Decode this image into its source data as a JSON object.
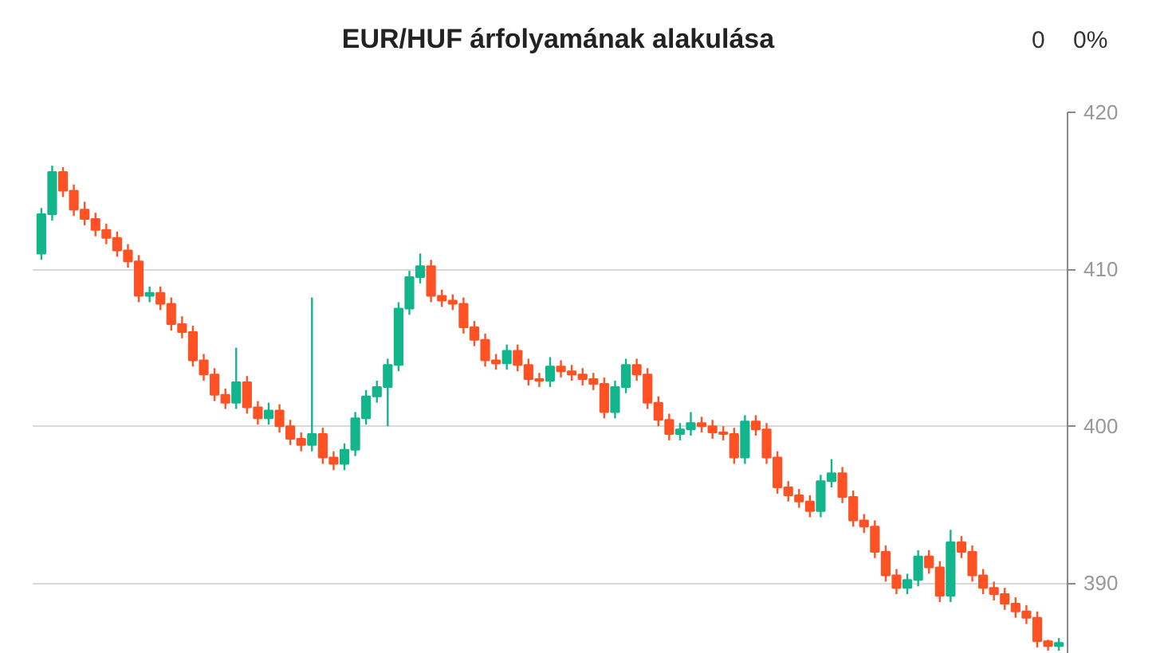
{
  "chart_data": {
    "type": "candlestick",
    "title": "EUR/HUF árfolyamának alakulása",
    "annotations": [
      "0",
      "0%"
    ],
    "categories": [
      null,
      null,
      null,
      null,
      null,
      null,
      null,
      null,
      null,
      null,
      null,
      null,
      null,
      null,
      null,
      null,
      null,
      null,
      null,
      null,
      null,
      null,
      null,
      null,
      null,
      null,
      null,
      null,
      null,
      null,
      null,
      null,
      null,
      null,
      null,
      null,
      null,
      null,
      null,
      null,
      null,
      null,
      null,
      null,
      null,
      null,
      null,
      null,
      null,
      null,
      null,
      null,
      null,
      null,
      null,
      null,
      null,
      null,
      null,
      null,
      null,
      null,
      null,
      null,
      null,
      null,
      null,
      null,
      null,
      null,
      null,
      null,
      null,
      null,
      null,
      null,
      null,
      null,
      null,
      null,
      null,
      null,
      null,
      null,
      null,
      null,
      null,
      null,
      null,
      null,
      null,
      null,
      null,
      null,
      null
    ],
    "ohlc": [
      [
        411.0,
        413.9,
        410.6,
        413.5
      ],
      [
        413.5,
        416.6,
        413.1,
        416.2
      ],
      [
        416.2,
        416.5,
        414.6,
        415.0
      ],
      [
        415.0,
        415.4,
        413.4,
        413.8
      ],
      [
        413.8,
        414.3,
        412.8,
        413.2
      ],
      [
        413.2,
        413.6,
        412.1,
        412.5
      ],
      [
        412.5,
        412.9,
        411.6,
        412.0
      ],
      [
        412.0,
        412.4,
        410.8,
        411.2
      ],
      [
        411.2,
        411.6,
        410.1,
        410.5
      ],
      [
        410.5,
        410.9,
        407.9,
        408.3
      ],
      [
        408.3,
        408.9,
        407.9,
        408.5
      ],
      [
        408.5,
        408.9,
        407.4,
        407.8
      ],
      [
        407.8,
        408.2,
        406.1,
        406.5
      ],
      [
        406.5,
        407.0,
        405.6,
        406.0
      ],
      [
        406.0,
        406.4,
        403.8,
        404.2
      ],
      [
        404.2,
        404.6,
        402.9,
        403.3
      ],
      [
        403.3,
        403.7,
        401.6,
        402.0
      ],
      [
        402.0,
        402.4,
        401.1,
        401.5
      ],
      [
        401.5,
        405.0,
        401.1,
        402.8
      ],
      [
        402.8,
        403.2,
        400.8,
        401.2
      ],
      [
        401.2,
        401.6,
        400.1,
        400.5
      ],
      [
        400.5,
        401.5,
        400.1,
        401.0
      ],
      [
        401.0,
        401.4,
        399.6,
        400.0
      ],
      [
        400.0,
        400.4,
        398.8,
        399.2
      ],
      [
        399.2,
        399.6,
        398.4,
        398.8
      ],
      [
        398.8,
        408.2,
        398.4,
        399.5
      ],
      [
        399.5,
        399.9,
        397.6,
        398.0
      ],
      [
        398.0,
        398.4,
        397.2,
        397.6
      ],
      [
        397.6,
        398.9,
        397.2,
        398.5
      ],
      [
        398.5,
        400.9,
        398.1,
        400.5
      ],
      [
        400.5,
        402.3,
        400.1,
        401.9
      ],
      [
        401.9,
        402.9,
        401.5,
        402.5
      ],
      [
        402.5,
        404.3,
        400.0,
        403.9
      ],
      [
        403.9,
        407.9,
        403.5,
        407.5
      ],
      [
        407.5,
        409.9,
        407.1,
        409.5
      ],
      [
        409.5,
        411.0,
        409.1,
        410.2
      ],
      [
        410.2,
        410.6,
        407.9,
        408.3
      ],
      [
        408.3,
        408.7,
        407.6,
        408.0
      ],
      [
        408.0,
        408.4,
        407.4,
        407.8
      ],
      [
        407.8,
        408.2,
        405.9,
        406.3
      ],
      [
        406.3,
        406.7,
        405.1,
        405.5
      ],
      [
        405.5,
        405.9,
        403.8,
        404.2
      ],
      [
        404.2,
        404.6,
        403.6,
        404.0
      ],
      [
        404.0,
        405.2,
        403.6,
        404.8
      ],
      [
        404.8,
        405.2,
        403.5,
        403.9
      ],
      [
        403.9,
        404.3,
        402.6,
        403.0
      ],
      [
        403.0,
        403.4,
        402.5,
        402.9
      ],
      [
        402.9,
        404.4,
        402.5,
        403.8
      ],
      [
        403.8,
        404.2,
        403.1,
        403.5
      ],
      [
        403.5,
        403.9,
        402.9,
        403.3
      ],
      [
        403.3,
        403.7,
        402.6,
        403.0
      ],
      [
        403.0,
        403.4,
        402.3,
        402.7
      ],
      [
        402.7,
        403.1,
        400.5,
        400.9
      ],
      [
        400.9,
        402.9,
        400.5,
        402.5
      ],
      [
        402.5,
        404.3,
        402.1,
        403.9
      ],
      [
        403.9,
        404.3,
        402.9,
        403.3
      ],
      [
        403.3,
        403.7,
        401.1,
        401.5
      ],
      [
        401.5,
        401.9,
        400.0,
        400.4
      ],
      [
        400.4,
        400.8,
        399.1,
        399.5
      ],
      [
        399.5,
        400.2,
        399.1,
        399.8
      ],
      [
        399.8,
        400.9,
        399.4,
        400.2
      ],
      [
        400.2,
        400.6,
        399.6,
        400.0
      ],
      [
        400.0,
        400.4,
        399.2,
        399.6
      ],
      [
        399.6,
        400.0,
        399.1,
        399.5
      ],
      [
        399.5,
        399.9,
        397.6,
        398.0
      ],
      [
        398.0,
        400.7,
        397.6,
        400.3
      ],
      [
        400.3,
        400.7,
        399.4,
        399.8
      ],
      [
        399.8,
        400.2,
        397.6,
        398.0
      ],
      [
        398.0,
        398.4,
        395.7,
        396.1
      ],
      [
        396.1,
        396.5,
        395.2,
        395.6
      ],
      [
        395.6,
        396.0,
        394.8,
        395.2
      ],
      [
        395.2,
        395.6,
        394.2,
        394.6
      ],
      [
        394.6,
        396.9,
        394.2,
        396.5
      ],
      [
        396.5,
        397.9,
        396.1,
        397.0
      ],
      [
        397.0,
        397.4,
        395.1,
        395.5
      ],
      [
        395.5,
        395.9,
        393.6,
        394.0
      ],
      [
        394.0,
        394.4,
        393.2,
        393.6
      ],
      [
        393.6,
        394.0,
        391.6,
        392.0
      ],
      [
        392.0,
        392.4,
        390.1,
        390.5
      ],
      [
        390.5,
        390.9,
        389.3,
        389.7
      ],
      [
        389.7,
        390.6,
        389.3,
        390.2
      ],
      [
        390.2,
        392.1,
        389.8,
        391.7
      ],
      [
        391.7,
        392.1,
        390.6,
        391.0
      ],
      [
        391.0,
        391.4,
        388.8,
        389.2
      ],
      [
        389.2,
        393.4,
        388.8,
        392.6
      ],
      [
        392.6,
        393.0,
        391.6,
        392.0
      ],
      [
        392.0,
        392.4,
        390.1,
        390.5
      ],
      [
        390.5,
        390.9,
        389.3,
        389.7
      ],
      [
        389.7,
        390.1,
        388.9,
        389.3
      ],
      [
        389.3,
        389.7,
        388.3,
        388.7
      ],
      [
        388.7,
        389.1,
        387.8,
        388.2
      ],
      [
        388.2,
        388.6,
        387.4,
        387.8
      ],
      [
        387.8,
        388.2,
        385.9,
        386.3
      ],
      [
        386.3,
        386.4,
        385.7,
        386.0
      ],
      [
        386.0,
        386.5,
        385.7,
        386.2
      ]
    ],
    "colors": [
      "#13b58c",
      "#13b58c",
      "#ff5224",
      "#ff5224",
      "#ff5224",
      "#ff5224",
      "#ff5224",
      "#ff5224",
      "#ff5224",
      "#ff5224",
      "#13b58c",
      "#ff5224",
      "#ff5224",
      "#ff5224",
      "#ff5224",
      "#ff5224",
      "#ff5224",
      "#ff5224",
      "#13b58c",
      "#ff5224",
      "#ff5224",
      "#13b58c",
      "#ff5224",
      "#ff5224",
      "#ff5224",
      "#13b58c",
      "#ff5224",
      "#ff5224",
      "#13b58c",
      "#13b58c",
      "#13b58c",
      "#13b58c",
      "#13b58c",
      "#13b58c",
      "#13b58c",
      "#13b58c",
      "#ff5224",
      "#ff5224",
      "#ff5224",
      "#ff5224",
      "#ff5224",
      "#ff5224",
      "#ff5224",
      "#13b58c",
      "#ff5224",
      "#ff5224",
      "#ff5224",
      "#13b58c",
      "#ff5224",
      "#ff5224",
      "#ff5224",
      "#ff5224",
      "#ff5224",
      "#13b58c",
      "#13b58c",
      "#ff5224",
      "#ff5224",
      "#ff5224",
      "#ff5224",
      "#13b58c",
      "#13b58c",
      "#ff5224",
      "#ff5224",
      "#ff5224",
      "#ff5224",
      "#13b58c",
      "#ff5224",
      "#ff5224",
      "#ff5224",
      "#ff5224",
      "#ff5224",
      "#ff5224",
      "#13b58c",
      "#13b58c",
      "#ff5224",
      "#ff5224",
      "#ff5224",
      "#ff5224",
      "#ff5224",
      "#ff5224",
      "#13b58c",
      "#13b58c",
      "#ff5224",
      "#ff5224",
      "#13b58c",
      "#ff5224",
      "#ff5224",
      "#ff5224",
      "#ff5224",
      "#ff5224",
      "#ff5224",
      "#ff5224",
      "#ff5224",
      "#ff5224",
      "#13b58c"
    ],
    "ylim": [
      385.5,
      420
    ],
    "yticks": [
      390,
      400,
      410,
      420
    ],
    "grid": "y",
    "tick_labels": "y"
  }
}
